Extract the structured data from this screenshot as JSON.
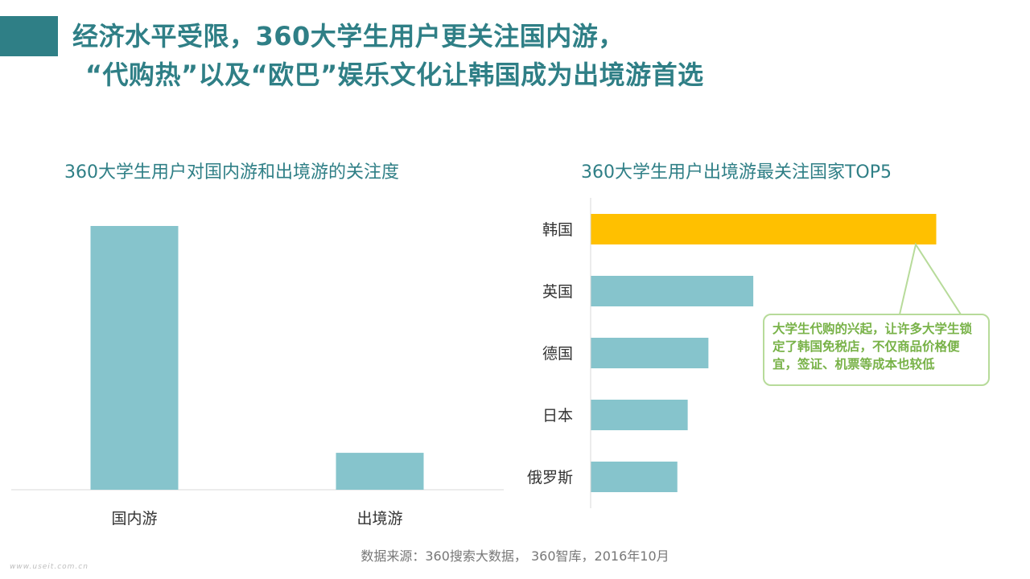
{
  "slide": {
    "title_line1": "经济水平受限，360大学生用户更关注国内游，",
    "title_line2": "“代购热”以及“欧巴”娱乐文化让韩国成为出境游首选",
    "source": "数据来源：360搜索大数据， 360智库，2016年10月",
    "watermark": "www.useit.com.cn",
    "accent_color": "#2f7f86"
  },
  "callout": {
    "text": "大学生代购的兴起，让许多大学生锁定了韩国免税店，不仅商品价格便宜，签证、机票等成本也较低"
  },
  "chart_data": [
    {
      "type": "bar",
      "title": "360大学生用户对国内游和出境游的关注度",
      "categories": [
        "国内游",
        "出境游"
      ],
      "values": [
        100,
        14
      ],
      "color": "#86c4cc",
      "grid": false
    },
    {
      "type": "bar",
      "orientation": "horizontal",
      "title": "360大学生用户出境游最关注国家TOP5",
      "categories": [
        "韩国",
        "英国",
        "德国",
        "日本",
        "俄罗斯"
      ],
      "values": [
        100,
        47,
        34,
        28,
        25
      ],
      "colors": [
        "#ffc000",
        "#86c4cc",
        "#86c4cc",
        "#86c4cc",
        "#86c4cc"
      ],
      "grid": false
    }
  ]
}
